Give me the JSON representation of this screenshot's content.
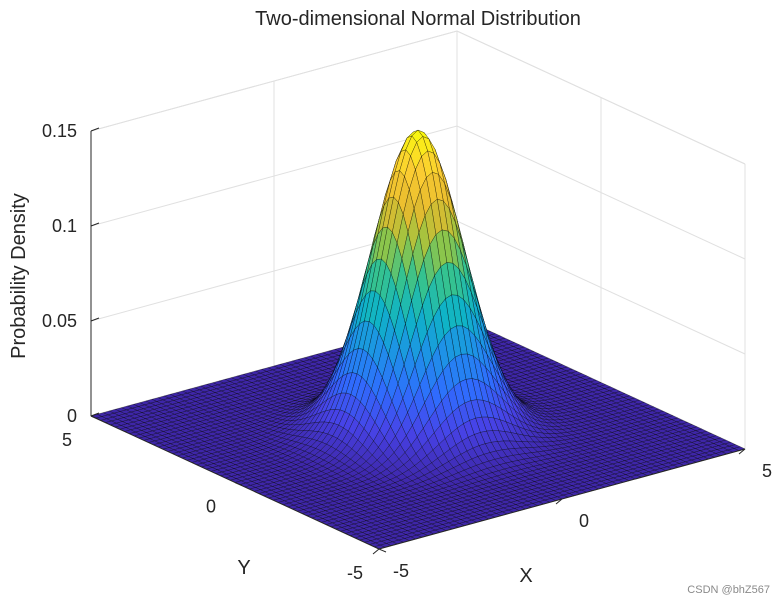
{
  "chart_data": {
    "type": "surface",
    "title": "Two-dimensional Normal Distribution",
    "xlabel": "X",
    "ylabel": "Y",
    "zlabel": "Probability Density",
    "xlim": [
      -5,
      5
    ],
    "ylim": [
      -5,
      5
    ],
    "zlim": [
      0,
      0.15
    ],
    "x_ticks": [
      "-5",
      "0",
      "5"
    ],
    "y_ticks": [
      "-5",
      "0",
      "5"
    ],
    "z_ticks": [
      "0",
      "0.05",
      "0.1",
      "0.15"
    ],
    "function": "bivariate normal, mean (0,0), unit variance",
    "peak_value": 0.159,
    "colormap": "parula",
    "grid": true,
    "box": true
  },
  "colors": {
    "colormap_stops": [
      "#3e26a8",
      "#4743e7",
      "#2f6dfe",
      "#1e91e8",
      "#0fb3c7",
      "#35c290",
      "#98c542",
      "#e6ba2e",
      "#fccd32",
      "#f9fb0e"
    ],
    "mesh_edge": "#000000",
    "axis_line": "#262626",
    "grid_line": "#e0e0e0"
  },
  "watermark": "CSDN @bhZ567"
}
